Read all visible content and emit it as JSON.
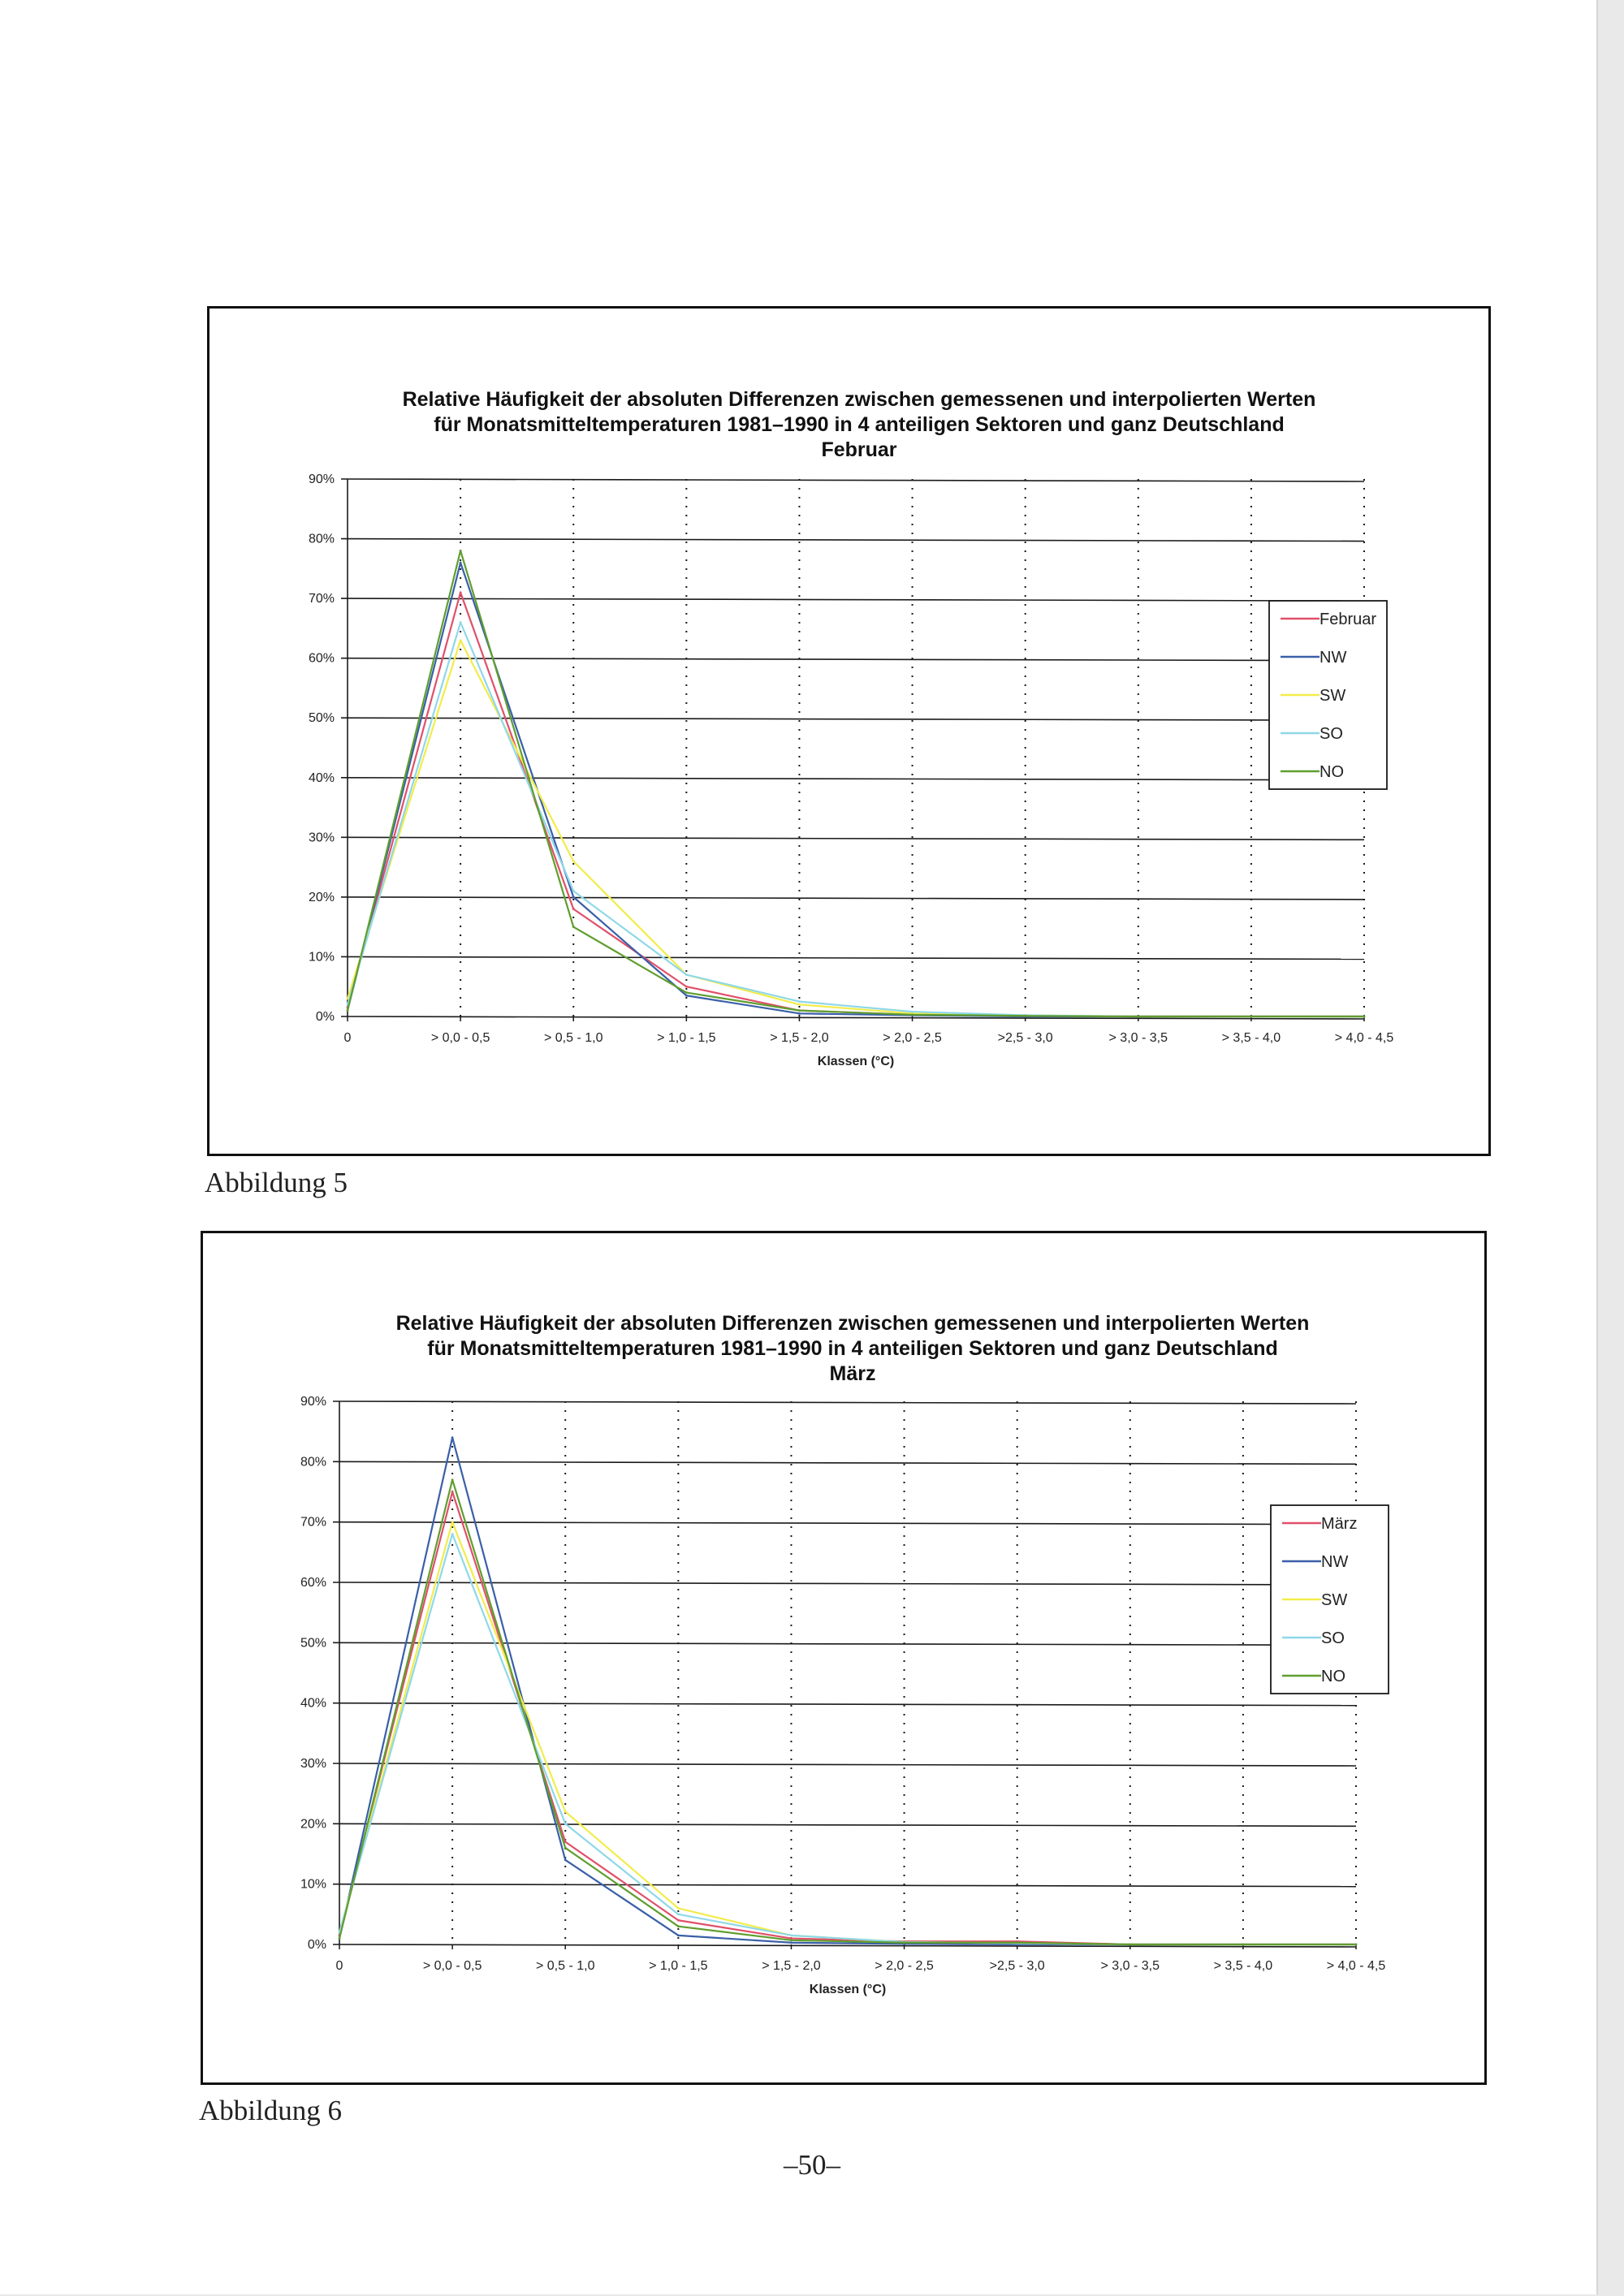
{
  "page": {
    "captions": [
      "Abbildung 5",
      "Abbildung 6"
    ],
    "page_number": "–50–"
  },
  "chart_data": [
    {
      "type": "line",
      "title": [
        "Relative Häufigkeit der absoluten Differenzen zwischen gemessenen und interpolierten Werten",
        "für Monatsmitteltemperaturen 1981–1990 in 4 anteiligen Sektoren und ganz Deutschland",
        "Februar"
      ],
      "xlabel": "Klassen (°C)",
      "ylabel": "",
      "categories": [
        "0",
        "> 0,0 - 0,5",
        "> 0,5 - 1,0",
        "> 1,0 - 1,5",
        "> 1,5 - 2,0",
        "> 2,0 - 2,5",
        ">2,5 - 3,0",
        "> 3,0 - 3,5",
        "> 3,5 - 4,0",
        "> 4,0 - 4,5"
      ],
      "ylim": [
        0,
        90
      ],
      "yticks": [
        "0%",
        "10%",
        "20%",
        "30%",
        "40%",
        "50%",
        "60%",
        "70%",
        "80%",
        "90%"
      ],
      "grid": "horizontal solid, vertical dotted",
      "legend_position": "right",
      "series": [
        {
          "name": "Februar",
          "color": "#e0506a",
          "values": [
            1.5,
            71,
            18,
            5,
            1,
            0.3,
            0.1,
            0,
            0,
            0
          ]
        },
        {
          "name": "NW",
          "color": "#3a5fa8",
          "values": [
            1,
            76,
            20,
            3.5,
            0.5,
            0.2,
            0,
            0,
            0,
            0
          ]
        },
        {
          "name": "SW",
          "color": "#f2ec4a",
          "values": [
            3,
            63,
            26,
            7,
            2,
            0.5,
            0.2,
            0,
            0,
            0
          ]
        },
        {
          "name": "SO",
          "color": "#8fd8e8",
          "values": [
            2,
            66,
            21,
            7,
            2.5,
            0.8,
            0.2,
            0,
            0,
            0
          ]
        },
        {
          "name": "NO",
          "color": "#5f9e2e",
          "values": [
            1,
            78,
            15,
            4,
            1,
            0.3,
            0.1,
            0,
            0,
            0
          ]
        }
      ]
    },
    {
      "type": "line",
      "title": [
        "Relative Häufigkeit der absoluten Differenzen zwischen gemessenen und interpolierten Werten",
        "für Monatsmitteltemperaturen 1981–1990 in 4 anteiligen Sektoren und ganz Deutschland",
        "März"
      ],
      "xlabel": "Klassen (°C)",
      "ylabel": "",
      "categories": [
        "0",
        "> 0,0 - 0,5",
        "> 0,5 - 1,0",
        "> 1,0 - 1,5",
        "> 1,5 - 2,0",
        "> 2,0 - 2,5",
        ">2,5 - 3,0",
        "> 3,0 - 3,5",
        "> 3,5 - 4,0",
        "> 4,0 - 4,5"
      ],
      "ylim": [
        0,
        90
      ],
      "yticks": [
        "0%",
        "10%",
        "20%",
        "30%",
        "40%",
        "50%",
        "60%",
        "70%",
        "80%",
        "90%"
      ],
      "grid": "horizontal solid, vertical dotted",
      "legend_position": "right",
      "series": [
        {
          "name": "März",
          "color": "#e0506a",
          "values": [
            1.5,
            75,
            17,
            4,
            1,
            0.5,
            0.5,
            0,
            0,
            0
          ]
        },
        {
          "name": "NW",
          "color": "#3a5fa8",
          "values": [
            1,
            84,
            14,
            1.5,
            0.3,
            0.1,
            0,
            0,
            0,
            0
          ]
        },
        {
          "name": "SW",
          "color": "#f2ec4a",
          "values": [
            2,
            70,
            22,
            6,
            1.5,
            0.4,
            0.2,
            0,
            0,
            0
          ]
        },
        {
          "name": "SO",
          "color": "#8fd8e8",
          "values": [
            2,
            68,
            20,
            5,
            1.5,
            0.4,
            0.2,
            0,
            0,
            0
          ]
        },
        {
          "name": "NO",
          "color": "#5f9e2e",
          "values": [
            1,
            77,
            16,
            3,
            0.7,
            0.3,
            0.3,
            0,
            0,
            0
          ]
        }
      ]
    }
  ]
}
